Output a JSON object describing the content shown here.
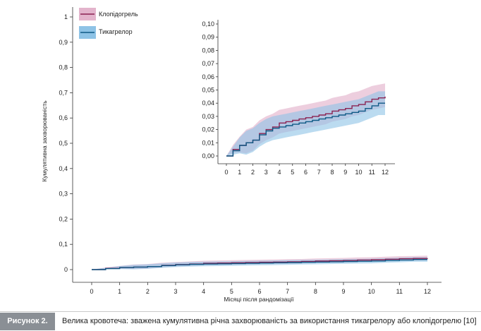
{
  "figure": {
    "label": "Рисунок 2.",
    "caption": "Велика кровотеча: зважена кумулятивна річна захворюваність за використання тикагрелору або клопідогрелю [10]"
  },
  "colors": {
    "clopidogrel_line": "#8b2252",
    "clopidogrel_band": "#e3b4cc",
    "ticagrelor_line": "#0f5a86",
    "ticagrelor_band": "#8ec3e6"
  },
  "chart_data": [
    {
      "type": "line",
      "role": "main",
      "xlabel": "Місяці після рандомізації",
      "ylabel": "Кумулятивна захворюваність",
      "xlim": [
        0,
        12
      ],
      "ylim": [
        0,
        1
      ],
      "xticks": [
        "0",
        "1",
        "2",
        "3",
        "4",
        "5",
        "6",
        "7",
        "8",
        "9",
        "10",
        "11",
        "12"
      ],
      "yticks": [
        "0",
        "0,1",
        "0,2",
        "0,3",
        "0,4",
        "0,5",
        "0,6",
        "0,7",
        "0,8",
        "0,9",
        "1"
      ],
      "legend": "top-left",
      "x": [
        0,
        0.5,
        1,
        1.5,
        2,
        2.5,
        3,
        3.5,
        4,
        4.5,
        5,
        5.5,
        6,
        6.5,
        7,
        7.5,
        8,
        8.5,
        9,
        9.5,
        10,
        10.5,
        11,
        11.5,
        12
      ],
      "series": [
        {
          "name": "Клопідогрель",
          "values": [
            0,
            0.005,
            0.008,
            0.01,
            0.012,
            0.017,
            0.02,
            0.022,
            0.025,
            0.026,
            0.027,
            0.028,
            0.029,
            0.03,
            0.031,
            0.032,
            0.034,
            0.035,
            0.036,
            0.038,
            0.039,
            0.041,
            0.043,
            0.044,
            0.045
          ],
          "band": [
            0.008,
            0.01
          ]
        },
        {
          "name": "Тикагрелор",
          "values": [
            0,
            0.004,
            0.008,
            0.01,
            0.012,
            0.016,
            0.019,
            0.021,
            0.022,
            0.023,
            0.024,
            0.025,
            0.026,
            0.027,
            0.028,
            0.029,
            0.03,
            0.031,
            0.032,
            0.033,
            0.034,
            0.036,
            0.038,
            0.04,
            0.04
          ],
          "band": [
            0.009,
            0.009
          ]
        }
      ]
    },
    {
      "type": "line",
      "role": "inset",
      "xlim": [
        0,
        12
      ],
      "ylim": [
        0,
        0.1
      ],
      "xticks": [
        "0",
        "1",
        "2",
        "3",
        "4",
        "5",
        "6",
        "7",
        "8",
        "9",
        "10",
        "11",
        "12"
      ],
      "yticks": [
        "0,00",
        "0,01",
        "0,02",
        "0,03",
        "0,04",
        "0,05",
        "0,06",
        "0,07",
        "0,08",
        "0,09",
        "0,10"
      ]
    }
  ]
}
